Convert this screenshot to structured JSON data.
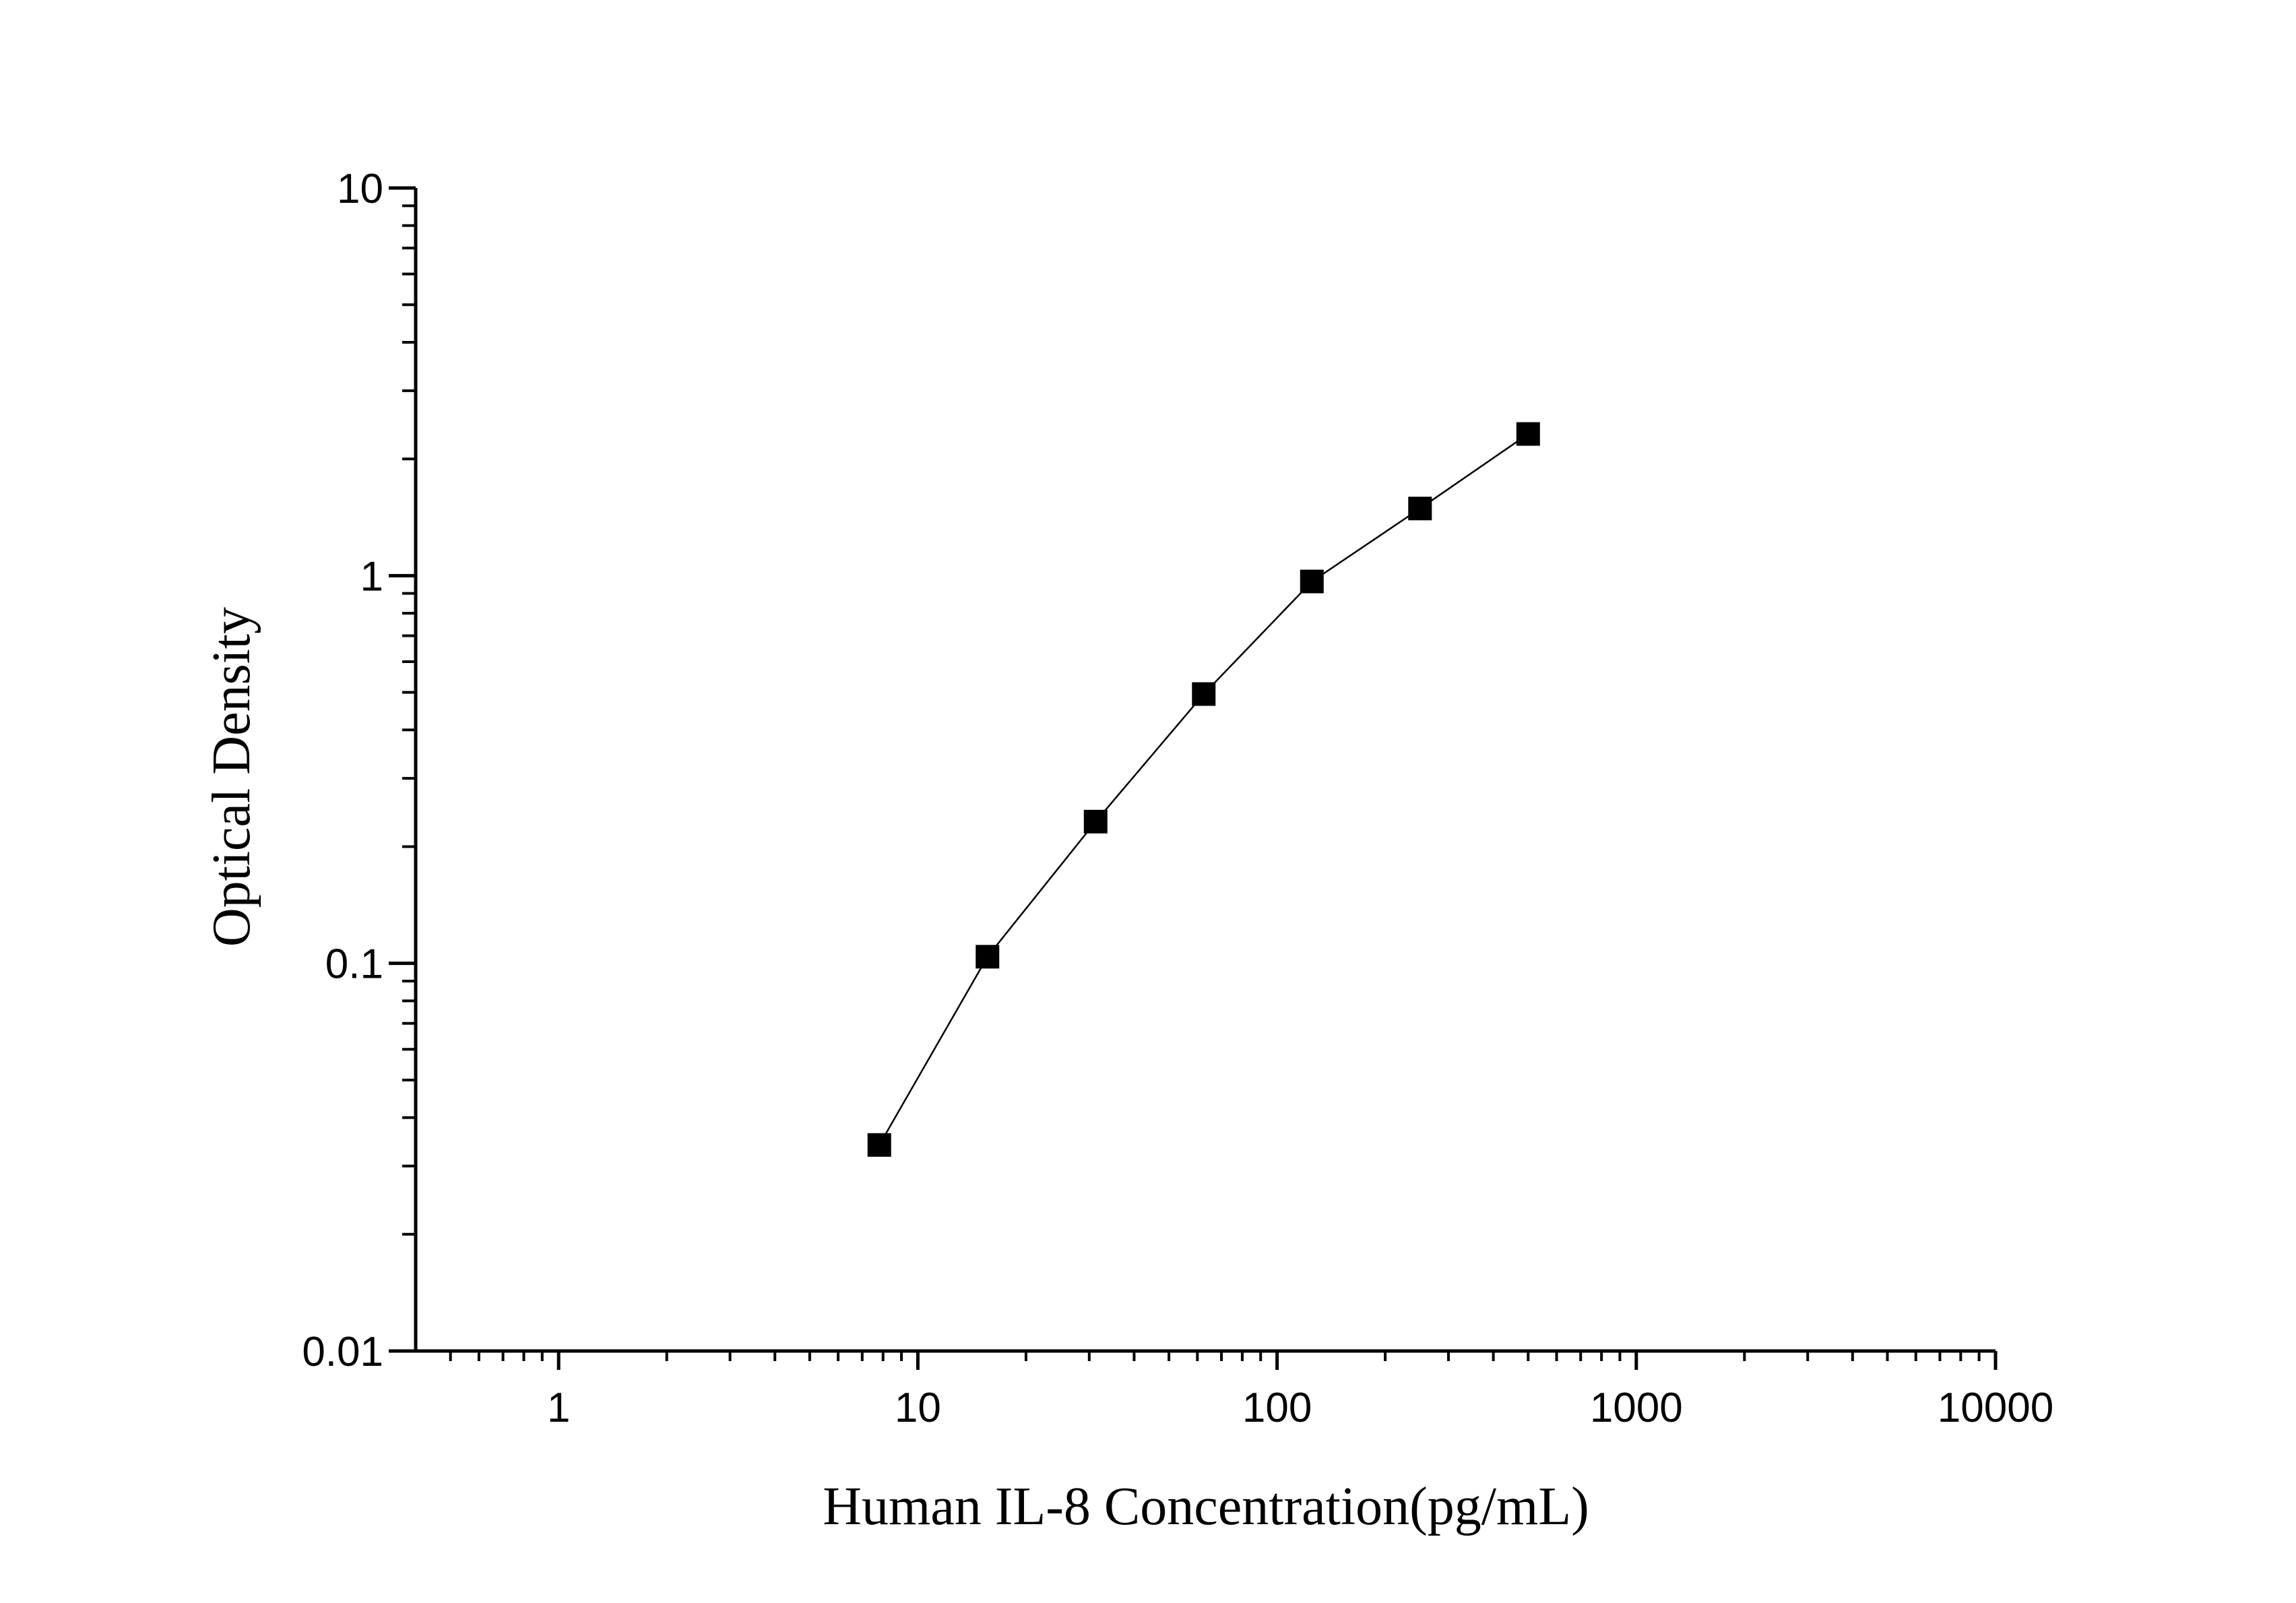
{
  "chart_data": {
    "type": "line",
    "x_label": "Human IL-8 Concentration(pg/mL)",
    "y_label": "Optical Density",
    "x": [
      7.8125,
      15.625,
      31.25,
      62.5,
      125,
      250,
      500
    ],
    "series": [
      {
        "color": "#000000",
        "values": [
          0.034,
          0.104,
          0.232,
          0.495,
          0.966,
          1.49,
          2.32
        ]
      }
    ],
    "markers": "square",
    "xscale": "log",
    "yscale": "log",
    "xlim": [
      0.4,
      10000
    ],
    "ylim": [
      0.01,
      10
    ],
    "xticks": [
      1,
      10,
      100,
      1000,
      10000
    ],
    "yticks": [
      0.01,
      0.1,
      1,
      10
    ],
    "xminorticks": [
      0.5,
      0.6,
      0.7,
      0.8,
      0.9,
      2,
      3,
      4,
      5,
      6,
      7,
      8,
      9,
      20,
      30,
      40,
      50,
      60,
      70,
      80,
      90,
      200,
      300,
      400,
      500,
      600,
      700,
      800,
      900,
      2000,
      3000,
      4000,
      5000,
      6000,
      7000,
      8000,
      9000
    ],
    "yminorticks": [
      0.02,
      0.03,
      0.04,
      0.05,
      0.06,
      0.07,
      0.08,
      0.09,
      0.2,
      0.3,
      0.4,
      0.5,
      0.6,
      0.7,
      0.8,
      0.9,
      2,
      3,
      4,
      5,
      6,
      7,
      8,
      9
    ],
    "grid": false
  }
}
